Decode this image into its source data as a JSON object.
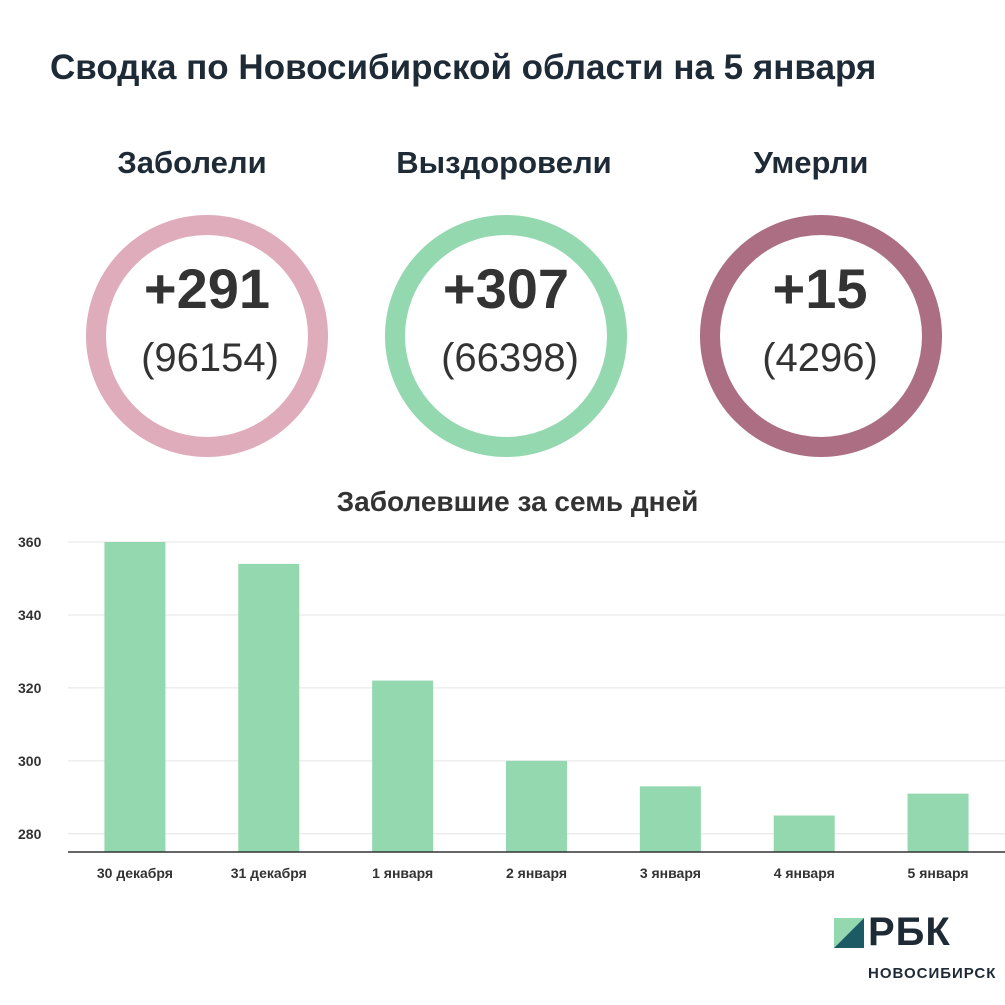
{
  "title": "Сводка по Новосибирской области на 5 января",
  "stats": [
    {
      "label": "Заболели",
      "delta": "+291",
      "total": "(96154)",
      "color": "#dfacbb"
    },
    {
      "label": "Выздоровели",
      "delta": "+307",
      "total": "(66398)",
      "color": "#93d8ae"
    },
    {
      "label": "Умерли",
      "delta": "+15",
      "total": "(4296)",
      "color": "#ab6e83"
    }
  ],
  "chart_title": "Заболевшие за семь дней",
  "chart_data": {
    "type": "bar",
    "title": "Заболевшие за семь дней",
    "categories": [
      "30 декабря",
      "31 декабря",
      "1 января",
      "2 января",
      "3 января",
      "4 января",
      "5 января"
    ],
    "values": [
      360,
      354,
      322,
      300,
      293,
      285,
      291
    ],
    "ylim": [
      275,
      360
    ],
    "yticks": [
      280,
      300,
      320,
      340,
      360
    ],
    "grid": true,
    "bar_color": "#93d8ae"
  },
  "logo": {
    "name": "РБК",
    "subtitle": "НОВОСИБИРСК"
  }
}
